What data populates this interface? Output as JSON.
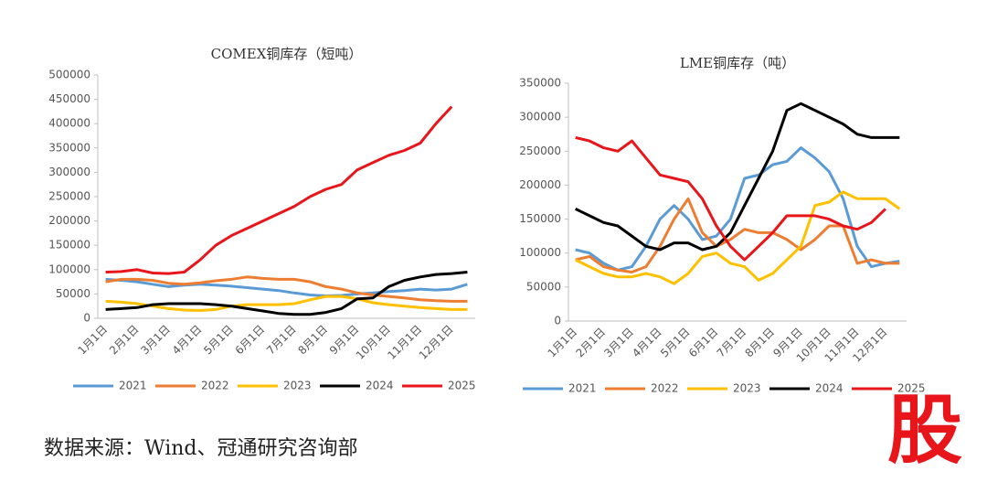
{
  "chart_data": [
    {
      "type": "line",
      "title": "COMEX铜库存（短吨）",
      "categories": [
        "1月1日",
        null,
        "2月1日",
        null,
        "3月1日",
        null,
        "4月1日",
        null,
        "5月1日",
        null,
        "6月1日",
        null,
        "7月1日",
        null,
        "8月1日",
        null,
        "9月1日",
        null,
        "10月1日",
        null,
        "11月1日",
        null,
        "12月1日",
        null
      ],
      "ylim": [
        0,
        500000
      ],
      "yticks": [
        0,
        50000,
        100000,
        150000,
        200000,
        250000,
        300000,
        350000,
        400000,
        450000,
        500000
      ],
      "grid": false,
      "legend": "bottom",
      "series": [
        {
          "name": "2021",
          "color": "#5b9bd5",
          "values": [
            80000,
            78000,
            75000,
            70000,
            65000,
            68000,
            70000,
            68000,
            66000,
            63000,
            60000,
            57000,
            52000,
            48000,
            46000,
            47000,
            50000,
            52000,
            55000,
            57000,
            60000,
            58000,
            60000,
            70000
          ]
        },
        {
          "name": "2022",
          "color": "#ed7d31",
          "values": [
            75000,
            80000,
            80000,
            78000,
            72000,
            70000,
            73000,
            77000,
            80000,
            85000,
            82000,
            80000,
            80000,
            75000,
            65000,
            60000,
            52000,
            48000,
            45000,
            42000,
            38000,
            36000,
            35000,
            35000
          ]
        },
        {
          "name": "2023",
          "color": "#ffc000",
          "values": [
            35000,
            33000,
            30000,
            25000,
            20000,
            17000,
            16000,
            18000,
            25000,
            28000,
            28000,
            28000,
            30000,
            38000,
            45000,
            45000,
            40000,
            32000,
            28000,
            25000,
            22000,
            20000,
            18000,
            18000
          ]
        },
        {
          "name": "2024",
          "color": "#000000",
          "values": [
            18000,
            20000,
            22000,
            28000,
            30000,
            30000,
            30000,
            28000,
            25000,
            20000,
            15000,
            10000,
            8000,
            8000,
            12000,
            20000,
            40000,
            42000,
            65000,
            78000,
            85000,
            90000,
            92000,
            95000
          ]
        },
        {
          "name": "2025",
          "color": "#e8161b",
          "values": [
            95000,
            96000,
            100000,
            93000,
            92000,
            95000,
            120000,
            150000,
            170000,
            185000,
            200000,
            215000,
            230000,
            250000,
            265000,
            275000,
            305000,
            320000,
            335000,
            345000,
            360000,
            400000,
            435000,
            null
          ]
        }
      ]
    },
    {
      "type": "line",
      "title": "LME铜库存（吨）",
      "categories": [
        "1月1日",
        null,
        "2月1日",
        null,
        "3月1日",
        null,
        "4月1日",
        null,
        "5月1日",
        null,
        "6月1日",
        null,
        "7月1日",
        null,
        "8月1日",
        null,
        "9月1日",
        null,
        "10月1日",
        null,
        "11月1日",
        null,
        "12月1日",
        null
      ],
      "ylim": [
        0,
        350000
      ],
      "yticks": [
        0,
        50000,
        100000,
        150000,
        200000,
        250000,
        300000,
        350000
      ],
      "grid": false,
      "legend": "bottom",
      "series": [
        {
          "name": "2021",
          "color": "#5b9bd5",
          "values": [
            105000,
            100000,
            85000,
            75000,
            80000,
            110000,
            150000,
            170000,
            150000,
            120000,
            125000,
            150000,
            210000,
            215000,
            230000,
            235000,
            255000,
            240000,
            220000,
            180000,
            110000,
            80000,
            85000,
            88000
          ]
        },
        {
          "name": "2022",
          "color": "#ed7d31",
          "values": [
            90000,
            95000,
            80000,
            75000,
            72000,
            80000,
            110000,
            150000,
            180000,
            130000,
            110000,
            120000,
            135000,
            130000,
            130000,
            120000,
            105000,
            120000,
            140000,
            140000,
            85000,
            90000,
            85000,
            85000
          ]
        },
        {
          "name": "2023",
          "color": "#ffc000",
          "values": [
            90000,
            80000,
            70000,
            65000,
            65000,
            70000,
            65000,
            55000,
            70000,
            95000,
            100000,
            85000,
            80000,
            60000,
            70000,
            90000,
            110000,
            170000,
            175000,
            190000,
            180000,
            180000,
            180000,
            165000
          ]
        },
        {
          "name": "2024",
          "color": "#000000",
          "values": [
            165000,
            155000,
            145000,
            140000,
            125000,
            110000,
            105000,
            115000,
            115000,
            105000,
            110000,
            130000,
            170000,
            210000,
            250000,
            310000,
            320000,
            310000,
            300000,
            290000,
            275000,
            270000,
            270000,
            270000
          ]
        },
        {
          "name": "2025",
          "color": "#e8161b",
          "values": [
            270000,
            265000,
            255000,
            250000,
            265000,
            240000,
            215000,
            210000,
            205000,
            180000,
            140000,
            110000,
            90000,
            110000,
            130000,
            155000,
            155000,
            155000,
            150000,
            140000,
            135000,
            145000,
            165000,
            null
          ]
        }
      ]
    }
  ],
  "source": "数据来源：Wind、冠通研究咨询部",
  "logo": "股"
}
